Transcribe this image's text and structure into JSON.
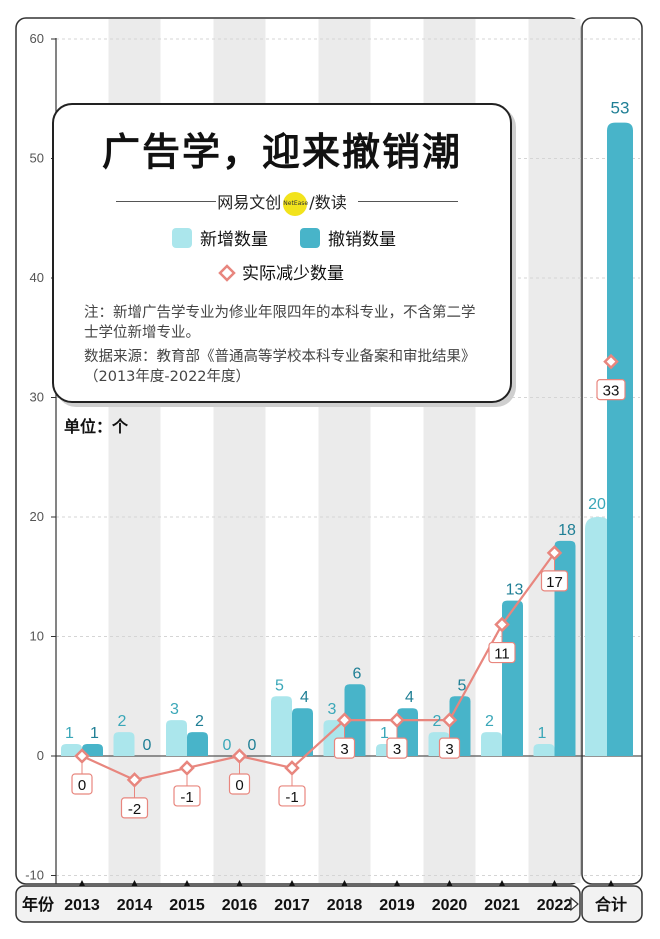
{
  "card": {
    "title": "广告学，迎来撤销潮",
    "brand_left": "网易文创",
    "brand_logo": "NetEase",
    "brand_right": "数读",
    "legend_new": "新增数量",
    "legend_cancel": "撤销数量",
    "legend_net": "实际减少数量",
    "note": "注：新增广告学专业为修业年限四年的本科专业，不含第二学士学位新增专业。",
    "source": "数据来源：教育部《普通高等学校本科专业备案和审批结果》（2013年度-2022年度）"
  },
  "unit": "单位：个",
  "colors": {
    "new": "#abe6ec",
    "cancel": "#48b4c9",
    "net": "#e8867e",
    "band": "#ebebeb"
  },
  "chart_data": {
    "type": "bar",
    "title": "广告学，迎来撤销潮",
    "xlabel": "年份",
    "ylabel": "单位：个",
    "ylim": [
      -10,
      60
    ],
    "yticks": [
      60,
      50,
      40,
      30,
      20,
      10,
      0,
      -10
    ],
    "categories": [
      "2013",
      "2014",
      "2015",
      "2016",
      "2017",
      "2018",
      "2019",
      "2020",
      "2021",
      "2022"
    ],
    "series": [
      {
        "name": "新增数量",
        "kind": "bar",
        "values": [
          1,
          2,
          3,
          0,
          5,
          3,
          1,
          2,
          2,
          1
        ]
      },
      {
        "name": "撤销数量",
        "kind": "bar",
        "values": [
          1,
          0,
          2,
          0,
          4,
          6,
          4,
          5,
          13,
          18
        ]
      },
      {
        "name": "实际减少数量",
        "kind": "line",
        "values": [
          0,
          -2,
          -1,
          0,
          -1,
          3,
          3,
          3,
          11,
          17
        ]
      }
    ],
    "total": {
      "label": "合计",
      "new": 20,
      "cancel": 53,
      "net": 33
    }
  }
}
